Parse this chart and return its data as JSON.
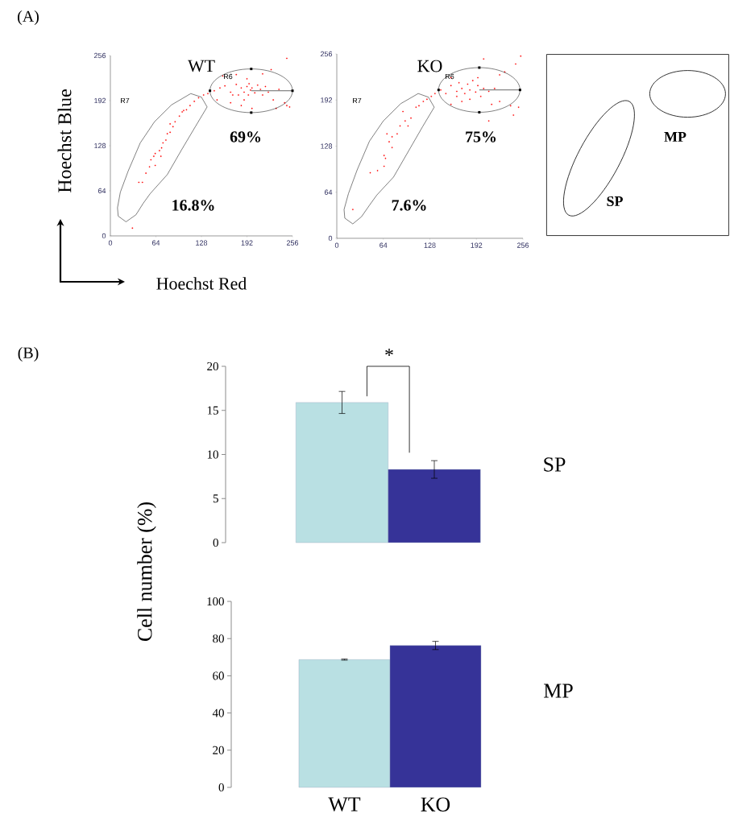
{
  "chart_data": [
    {
      "type": "scatter",
      "title": "WT",
      "xlabel": "Hoechst Red",
      "ylabel": "Hoechst Blue",
      "xlim": [
        0,
        256
      ],
      "ylim": [
        0,
        256
      ],
      "xticks": [
        0,
        64,
        128,
        192,
        256
      ],
      "yticks": [
        0,
        64,
        128,
        192,
        256
      ],
      "marker": "square",
      "color": "#ff0000",
      "x": [
        31,
        40,
        45,
        50,
        55,
        57,
        61,
        63,
        69,
        72,
        74,
        78,
        80,
        84,
        88,
        91,
        97,
        101,
        107,
        112,
        118,
        124,
        131,
        137,
        71,
        63,
        84,
        103,
        146,
        154,
        161,
        169,
        177,
        180,
        184,
        188,
        192,
        194,
        195,
        197,
        199,
        203,
        207,
        211,
        214,
        218,
        222,
        226,
        229,
        237,
        245,
        248,
        252,
        248,
        158,
        177,
        184,
        199,
        169,
        150,
        214,
        192,
        188,
        172,
        233
      ],
      "values": [
        11,
        76,
        76,
        89,
        98,
        108,
        113,
        117,
        121,
        125,
        132,
        136,
        145,
        147,
        155,
        162,
        170,
        176,
        179,
        185,
        191,
        196,
        200,
        202,
        113,
        100,
        159,
        178,
        206,
        210,
        213,
        204,
        215,
        200,
        210,
        204,
        212,
        200,
        216,
        207,
        210,
        203,
        214,
        208,
        200,
        212,
        204,
        236,
        193,
        208,
        189,
        185,
        183,
        252,
        227,
        229,
        185,
        181,
        189,
        193,
        230,
        223,
        193,
        200,
        181
      ],
      "annotations": [
        "R6",
        "R7",
        "69%",
        "16.8%",
        "(A)"
      ]
    },
    {
      "type": "scatter",
      "title": "KO",
      "xlim": [
        0,
        256
      ],
      "ylim": [
        0,
        256
      ],
      "xticks": [
        0,
        64,
        128,
        192,
        256
      ],
      "yticks": [
        0,
        64,
        128,
        192,
        256
      ],
      "marker": "square",
      "color": "#ff0000",
      "x": [
        22,
        46,
        56,
        65,
        67,
        65,
        72,
        76,
        83,
        87,
        94,
        98,
        102,
        109,
        113,
        119,
        124,
        130,
        135,
        91,
        76,
        69,
        143,
        150,
        157,
        165,
        168,
        172,
        176,
        180,
        183,
        187,
        191,
        194,
        198,
        202,
        209,
        217,
        224,
        231,
        239,
        246,
        250,
        253,
        243,
        209,
        157,
        172,
        194,
        157,
        213,
        202,
        224,
        183,
        165
      ],
      "values": [
        40,
        91,
        94,
        100,
        111,
        115,
        134,
        141,
        145,
        156,
        163,
        156,
        167,
        182,
        184,
        190,
        193,
        197,
        201,
        176,
        126,
        145,
        206,
        201,
        212,
        204,
        216,
        208,
        201,
        214,
        206,
        219,
        203,
        212,
        197,
        208,
        204,
        208,
        190,
        231,
        184,
        242,
        182,
        253,
        171,
        163,
        186,
        190,
        223,
        223,
        186,
        249,
        227,
        193,
        197
      ],
      "annotations": [
        "R6",
        "R7",
        "75%",
        "7.6%"
      ]
    },
    {
      "type": "other",
      "annotations": [
        "MP",
        "SP"
      ]
    },
    {
      "type": "bar",
      "ylabel": "Cell number (%)",
      "values": [
        15.9,
        8.3
      ],
      "errors": [
        1.25,
        1.0
      ],
      "colors": [
        "#b9e0e3",
        "#363398"
      ],
      "ylim": [
        0,
        20
      ],
      "yticks": [
        0,
        5,
        10,
        15,
        20
      ],
      "tick_labels": "y",
      "annotations": [
        "*",
        "(B)",
        "SP"
      ]
    },
    {
      "type": "bar",
      "annotations": [
        "MP"
      ],
      "categories": [
        "WT",
        "KO"
      ],
      "values": [
        68.7,
        76.3
      ],
      "errors": [
        0.3,
        2.2
      ],
      "colors": [
        "#b9e0e3",
        "#363398"
      ],
      "ylim": [
        0,
        100
      ],
      "yticks": [
        0,
        20,
        40,
        60,
        80,
        100
      ]
    }
  ]
}
